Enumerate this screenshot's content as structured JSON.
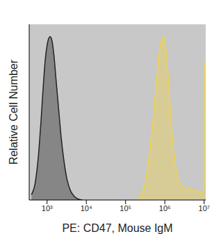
{
  "chart_data": {
    "type": "area",
    "xlabel": "PE: CD47, Mouse IgM",
    "ylabel": "Relative Cell Number",
    "log": "x",
    "grid": false,
    "tick_labels": "x",
    "xlim": [
      350,
      11000000
    ],
    "xticks": [
      {
        "value": 1000,
        "label": "10³"
      },
      {
        "value": 10000,
        "label": "10⁴"
      },
      {
        "value": 100000,
        "label": "10⁵"
      },
      {
        "value": 1000000,
        "label": "10⁶"
      },
      {
        "value": 10000000,
        "label": "10⁷"
      }
    ],
    "ylim": [
      0,
      100
    ],
    "series": [
      {
        "color": "#222222",
        "x": [
          400,
          500,
          600,
          700,
          800,
          900,
          1000,
          1100,
          1200,
          1350,
          1500,
          1700,
          2000,
          2300,
          2700,
          3200,
          4000,
          5000,
          6300,
          8000
        ],
        "values": [
          3,
          10,
          25,
          45,
          65,
          80,
          88,
          92,
          93,
          90,
          82,
          68,
          50,
          35,
          22,
          12,
          5,
          2,
          0.5,
          0
        ]
      },
      {
        "color": "#f0d24a",
        "x": [
          200000,
          250000,
          320000,
          400000,
          500000,
          600000,
          700000,
          800000,
          900000,
          1000000,
          1150000,
          1300000,
          1500000,
          1800000,
          2200000,
          2800000,
          3500000,
          4500000,
          5500000,
          7000000,
          8500000,
          9800000,
          10000000,
          11000000
        ],
        "values": [
          0,
          3,
          10,
          25,
          45,
          65,
          82,
          90,
          93,
          90,
          78,
          60,
          40,
          22,
          12,
          8,
          6,
          7,
          5,
          5,
          4,
          6,
          78,
          78
        ]
      }
    ]
  }
}
